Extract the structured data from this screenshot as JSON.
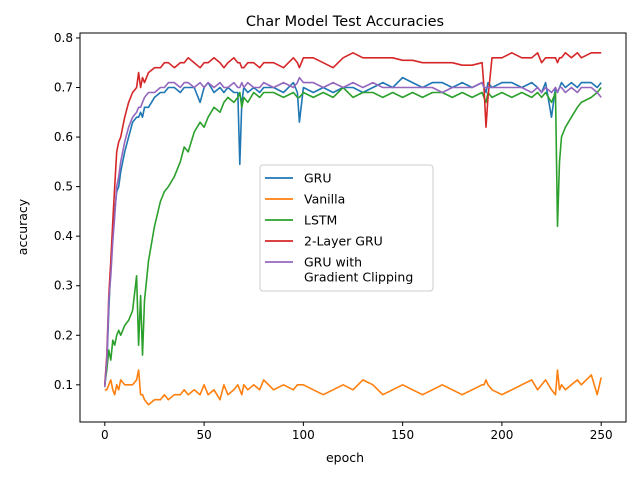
{
  "chart_data": {
    "type": "line",
    "title": "Char Model Test Accuracies",
    "xlabel": "epoch",
    "ylabel": "accuracy",
    "xlim": [
      -12.5,
      262.5
    ],
    "ylim": [
      0.025,
      0.81
    ],
    "xticks": [
      "0",
      "50",
      "100",
      "150",
      "200",
      "250"
    ],
    "yticks": [
      "0.1",
      "0.2",
      "0.3",
      "0.4",
      "0.5",
      "0.6",
      "0.7",
      "0.8"
    ],
    "grid": false,
    "legend_position": "center-right",
    "x": [
      0,
      1,
      2,
      3,
      4,
      5,
      6,
      7,
      8,
      10,
      12,
      14,
      16,
      17,
      18,
      19,
      20,
      22,
      25,
      28,
      30,
      32,
      35,
      38,
      40,
      42,
      45,
      48,
      50,
      52,
      55,
      58,
      60,
      62,
      65,
      67,
      68,
      69,
      70,
      72,
      75,
      78,
      80,
      85,
      90,
      95,
      97,
      98,
      100,
      105,
      110,
      115,
      120,
      125,
      130,
      135,
      140,
      145,
      150,
      155,
      160,
      165,
      170,
      175,
      180,
      185,
      190,
      191,
      192,
      193,
      195,
      200,
      205,
      210,
      215,
      218,
      220,
      222,
      225,
      227,
      228,
      229,
      230,
      232,
      235,
      238,
      240,
      245,
      248,
      250
    ],
    "series": [
      {
        "name": "GRU",
        "color": "#1f77b4",
        "values": [
          0.1,
          0.14,
          0.25,
          0.34,
          0.4,
          0.45,
          0.49,
          0.5,
          0.53,
          0.57,
          0.6,
          0.63,
          0.64,
          0.64,
          0.65,
          0.64,
          0.66,
          0.66,
          0.68,
          0.69,
          0.69,
          0.7,
          0.7,
          0.69,
          0.7,
          0.7,
          0.7,
          0.67,
          0.7,
          0.71,
          0.69,
          0.7,
          0.69,
          0.7,
          0.69,
          0.69,
          0.545,
          0.67,
          0.7,
          0.69,
          0.7,
          0.69,
          0.7,
          0.7,
          0.69,
          0.71,
          0.69,
          0.63,
          0.7,
          0.69,
          0.7,
          0.69,
          0.7,
          0.7,
          0.69,
          0.7,
          0.71,
          0.7,
          0.72,
          0.71,
          0.7,
          0.71,
          0.71,
          0.7,
          0.71,
          0.7,
          0.71,
          0.7,
          0.69,
          0.71,
          0.7,
          0.71,
          0.71,
          0.7,
          0.71,
          0.7,
          0.69,
          0.71,
          0.64,
          0.7,
          0.69,
          0.7,
          0.71,
          0.7,
          0.71,
          0.7,
          0.71,
          0.71,
          0.7,
          0.71
        ]
      },
      {
        "name": "Vanilla",
        "color": "#ff7f0e",
        "values": [
          0.09,
          0.09,
          0.1,
          0.11,
          0.09,
          0.08,
          0.1,
          0.09,
          0.11,
          0.1,
          0.1,
          0.1,
          0.11,
          0.13,
          0.08,
          0.08,
          0.07,
          0.06,
          0.07,
          0.07,
          0.08,
          0.07,
          0.08,
          0.08,
          0.09,
          0.08,
          0.09,
          0.08,
          0.1,
          0.08,
          0.09,
          0.07,
          0.1,
          0.08,
          0.09,
          0.1,
          0.09,
          0.08,
          0.1,
          0.09,
          0.1,
          0.09,
          0.11,
          0.09,
          0.1,
          0.09,
          0.1,
          0.1,
          0.1,
          0.09,
          0.08,
          0.09,
          0.1,
          0.09,
          0.11,
          0.1,
          0.08,
          0.09,
          0.1,
          0.09,
          0.08,
          0.09,
          0.1,
          0.09,
          0.08,
          0.09,
          0.1,
          0.1,
          0.11,
          0.1,
          0.09,
          0.08,
          0.09,
          0.1,
          0.11,
          0.09,
          0.1,
          0.11,
          0.09,
          0.08,
          0.13,
          0.09,
          0.1,
          0.09,
          0.1,
          0.11,
          0.1,
          0.12,
          0.08,
          0.115
        ]
      },
      {
        "name": "LSTM",
        "color": "#2ca02c",
        "values": [
          0.1,
          0.13,
          0.17,
          0.15,
          0.19,
          0.18,
          0.2,
          0.21,
          0.2,
          0.22,
          0.23,
          0.25,
          0.32,
          0.18,
          0.28,
          0.16,
          0.27,
          0.35,
          0.42,
          0.47,
          0.49,
          0.5,
          0.52,
          0.55,
          0.58,
          0.57,
          0.61,
          0.63,
          0.62,
          0.64,
          0.66,
          0.65,
          0.67,
          0.68,
          0.67,
          0.68,
          0.69,
          0.66,
          0.68,
          0.67,
          0.69,
          0.68,
          0.69,
          0.69,
          0.68,
          0.69,
          0.68,
          0.68,
          0.69,
          0.68,
          0.69,
          0.68,
          0.7,
          0.68,
          0.69,
          0.69,
          0.68,
          0.69,
          0.68,
          0.69,
          0.68,
          0.69,
          0.69,
          0.68,
          0.69,
          0.68,
          0.69,
          0.68,
          0.67,
          0.69,
          0.68,
          0.69,
          0.68,
          0.69,
          0.68,
          0.69,
          0.68,
          0.69,
          0.67,
          0.69,
          0.42,
          0.55,
          0.6,
          0.62,
          0.64,
          0.66,
          0.67,
          0.68,
          0.69,
          0.7
        ]
      },
      {
        "name": "2-Layer GRU",
        "color": "#d62728",
        "values": [
          0.1,
          0.16,
          0.28,
          0.35,
          0.43,
          0.5,
          0.57,
          0.59,
          0.6,
          0.64,
          0.67,
          0.69,
          0.7,
          0.73,
          0.7,
          0.72,
          0.71,
          0.73,
          0.74,
          0.74,
          0.75,
          0.75,
          0.74,
          0.75,
          0.75,
          0.76,
          0.75,
          0.74,
          0.75,
          0.75,
          0.76,
          0.75,
          0.74,
          0.75,
          0.76,
          0.75,
          0.75,
          0.74,
          0.74,
          0.75,
          0.75,
          0.74,
          0.75,
          0.75,
          0.74,
          0.76,
          0.75,
          0.74,
          0.76,
          0.76,
          0.75,
          0.74,
          0.76,
          0.77,
          0.76,
          0.76,
          0.76,
          0.76,
          0.755,
          0.755,
          0.75,
          0.75,
          0.75,
          0.75,
          0.745,
          0.745,
          0.75,
          0.7,
          0.62,
          0.68,
          0.76,
          0.76,
          0.77,
          0.76,
          0.76,
          0.77,
          0.75,
          0.76,
          0.76,
          0.76,
          0.75,
          0.76,
          0.76,
          0.77,
          0.76,
          0.77,
          0.76,
          0.77,
          0.77,
          0.77
        ]
      },
      {
        "name": "GRU with\nGradient Clipping",
        "color": "#9467bd",
        "values": [
          0.095,
          0.15,
          0.27,
          0.32,
          0.39,
          0.44,
          0.5,
          0.52,
          0.55,
          0.59,
          0.62,
          0.64,
          0.65,
          0.66,
          0.66,
          0.67,
          0.68,
          0.69,
          0.69,
          0.7,
          0.7,
          0.71,
          0.71,
          0.7,
          0.71,
          0.71,
          0.7,
          0.71,
          0.7,
          0.71,
          0.7,
          0.71,
          0.7,
          0.7,
          0.71,
          0.7,
          0.7,
          0.71,
          0.7,
          0.71,
          0.7,
          0.7,
          0.71,
          0.7,
          0.71,
          0.7,
          0.71,
          0.72,
          0.71,
          0.71,
          0.7,
          0.71,
          0.7,
          0.71,
          0.7,
          0.71,
          0.7,
          0.7,
          0.7,
          0.7,
          0.7,
          0.7,
          0.69,
          0.7,
          0.7,
          0.7,
          0.71,
          0.7,
          0.7,
          0.7,
          0.7,
          0.7,
          0.7,
          0.7,
          0.69,
          0.7,
          0.69,
          0.7,
          0.69,
          0.7,
          0.69,
          0.7,
          0.7,
          0.69,
          0.7,
          0.69,
          0.7,
          0.7,
          0.69,
          0.68
        ]
      }
    ]
  }
}
